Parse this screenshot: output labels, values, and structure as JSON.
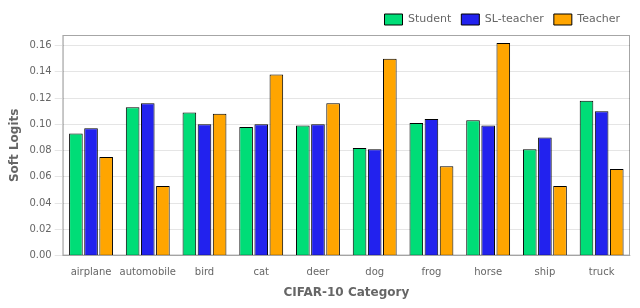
{
  "chart_data": {
    "type": "bar",
    "xlabel": "CIFAR-10 Category",
    "ylabel": "Soft Logits",
    "categories": [
      "airplane",
      "automobile",
      "bird",
      "cat",
      "deer",
      "dog",
      "frog",
      "horse",
      "ship",
      "truck"
    ],
    "series": [
      {
        "name": "Student",
        "color": "#00DD77",
        "values": [
          0.093,
          0.113,
          0.109,
          0.098,
          0.099,
          0.082,
          0.101,
          0.103,
          0.081,
          0.118
        ]
      },
      {
        "name": "SL-teacher",
        "color": "#2222EE",
        "values": [
          0.097,
          0.116,
          0.1,
          0.1,
          0.1,
          0.081,
          0.104,
          0.099,
          0.09,
          0.11
        ]
      },
      {
        "name": "Teacher",
        "color": "#FFA500",
        "values": [
          0.075,
          0.053,
          0.108,
          0.138,
          0.116,
          0.15,
          0.068,
          0.162,
          0.053,
          0.066
        ]
      }
    ],
    "ylim": [
      0.0,
      0.168
    ],
    "yticks": [
      {
        "value": 0.0,
        "label": "0.00"
      },
      {
        "value": 0.02,
        "label": "0.02"
      },
      {
        "value": 0.04,
        "label": "0.04"
      },
      {
        "value": 0.06,
        "label": "0.06"
      },
      {
        "value": 0.08,
        "label": "0.08"
      },
      {
        "value": 0.1,
        "label": "0.10"
      },
      {
        "value": 0.12,
        "label": "0.12"
      },
      {
        "value": 0.14,
        "label": "0.14"
      },
      {
        "value": 0.16,
        "label": "0.16"
      }
    ],
    "grid": true,
    "legend": "upper right"
  }
}
